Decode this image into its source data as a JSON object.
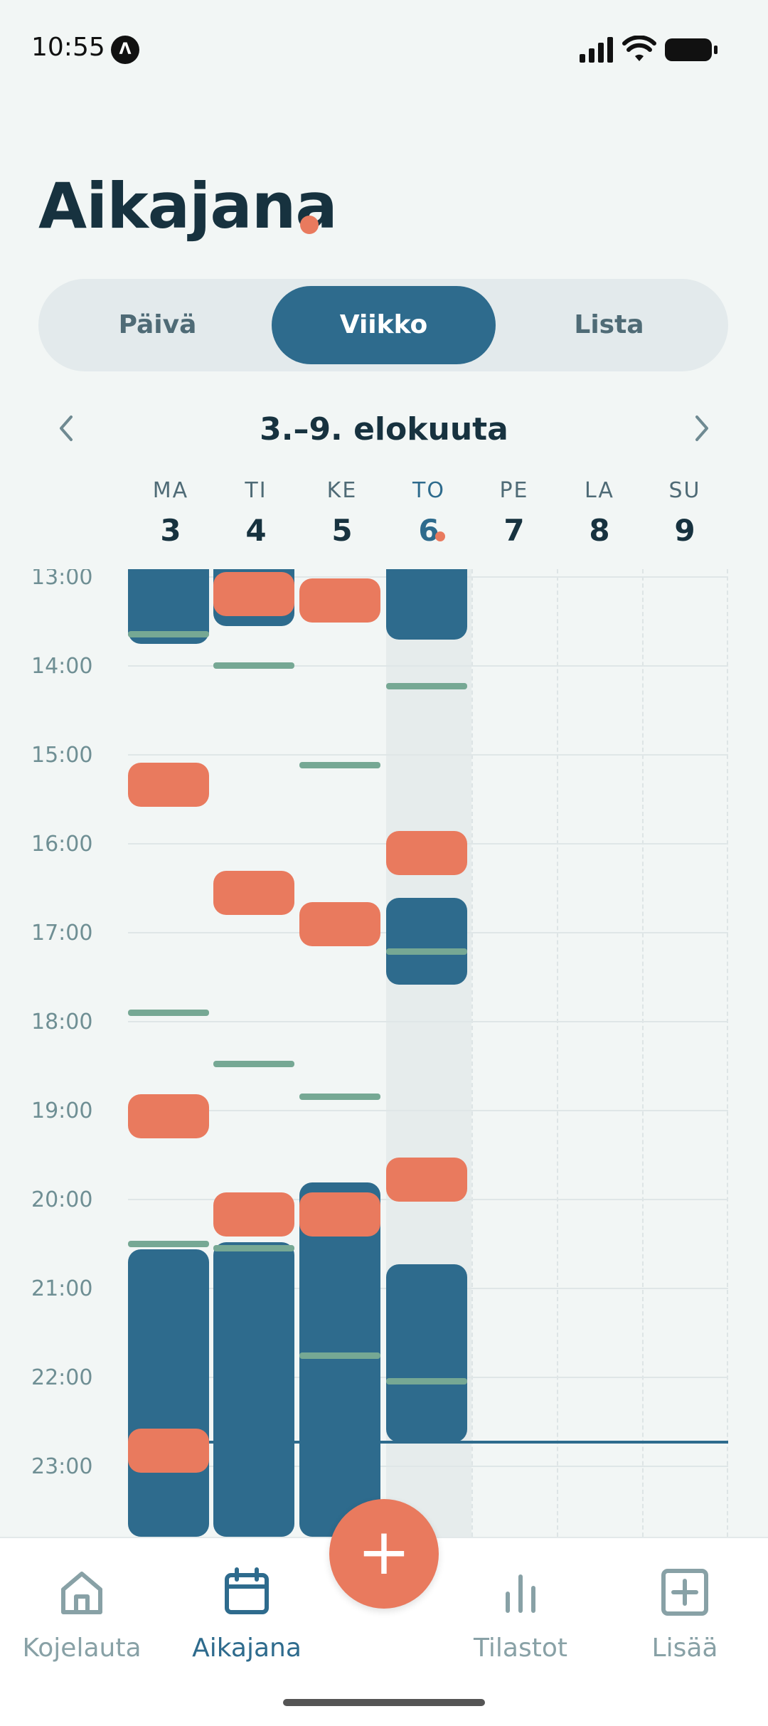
{
  "status": {
    "time": "10:55",
    "app_indicator": "Λ"
  },
  "header": {
    "title": "Aikajana"
  },
  "segments": [
    {
      "label": "Päivä",
      "active": false
    },
    {
      "label": "Viikko",
      "active": true
    },
    {
      "label": "Lista",
      "active": false
    }
  ],
  "week": {
    "label": "3.–9. elokuuta",
    "prev_icon": "chevron-left-icon",
    "next_icon": "chevron-right-icon"
  },
  "days": [
    {
      "name": "MA",
      "date": "3"
    },
    {
      "name": "TI",
      "date": "4"
    },
    {
      "name": "KE",
      "date": "5"
    },
    {
      "name": "TO",
      "date": "6",
      "today": true
    },
    {
      "name": "PE",
      "date": "7"
    },
    {
      "name": "LA",
      "date": "8"
    },
    {
      "name": "SU",
      "date": "9"
    }
  ],
  "hours": [
    "13:00",
    "14:00",
    "15:00",
    "16:00",
    "17:00",
    "18:00",
    "19:00",
    "20:00",
    "21:00",
    "22:00",
    "23:00"
  ],
  "fab": {
    "label": "+",
    "icon": "plus-icon"
  },
  "colors": {
    "sleep": "#2e6b8d",
    "meal": "#e97a5e",
    "note": "#76a894",
    "accent": "#2e6b8d"
  },
  "tabs": [
    {
      "label": "Kojelauta",
      "icon": "home-icon"
    },
    {
      "label": "Aikajana",
      "icon": "calendar-icon",
      "active": true
    },
    {
      "label": "Tilastot",
      "icon": "bar-chart-icon"
    },
    {
      "label": "Lisää",
      "icon": "add-square-icon"
    }
  ]
}
